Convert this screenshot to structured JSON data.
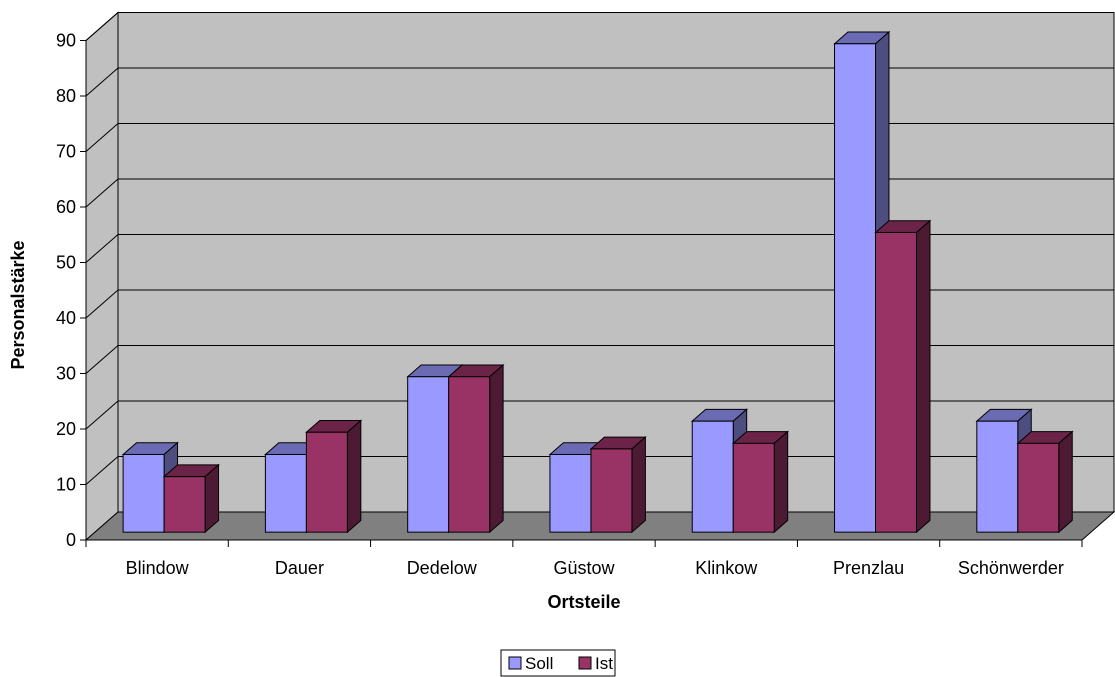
{
  "chart_data": {
    "type": "bar",
    "style": "3d-clustered-column",
    "title": "",
    "xlabel": "Ortsteile",
    "ylabel": "Personalstärke",
    "ylim": [
      0,
      90
    ],
    "yticks": [
      "0",
      "10",
      "20",
      "30",
      "40",
      "50",
      "60",
      "70",
      "80",
      "90"
    ],
    "grid": true,
    "legend_position": "bottom-center",
    "categories": [
      "Blindow",
      "Dauer",
      "Dedelow",
      "Güstow",
      "Klinkow",
      "Prenzlau",
      "Schönwerder"
    ],
    "series": [
      {
        "name": "Soll",
        "values": [
          14,
          14,
          28,
          14,
          20,
          88,
          20
        ],
        "color": "#9999ff"
      },
      {
        "name": "Ist",
        "values": [
          10,
          18,
          28,
          15,
          16,
          54,
          16
        ],
        "color": "#993366"
      }
    ],
    "colors": {
      "wall": "#c0c0c0",
      "floor": "#808080",
      "grid": "#000000"
    }
  }
}
